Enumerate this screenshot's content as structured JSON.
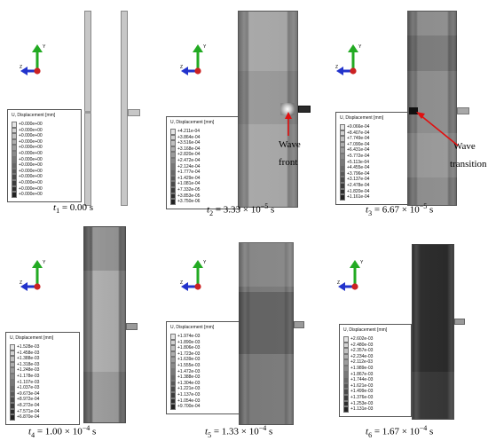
{
  "legend_title": "U, Displacement [mm]",
  "panels": [
    {
      "time_var": "t",
      "time_sub": "1",
      "time_eq": " = 0.00 s",
      "time_exp": "",
      "time_pre": "",
      "time_post": "",
      "legend_values": [
        "+0.000e+00",
        "+0.000e+00",
        "+0.000e+00",
        "+0.000e+00",
        "+0.000e+00",
        "+0.000e+00",
        "+0.000e+00",
        "+0.000e+00",
        "+0.000e+00",
        "+0.000e+00",
        "+0.000e+00",
        "+0.000e+00",
        "+0.000e+00"
      ]
    },
    {
      "time_var": "t",
      "time_sub": "2",
      "time_pre": " = 3.33 × 10",
      "time_exp": "−5",
      "time_post": " s",
      "legend_values": [
        "+4.211e-04",
        "+3.864e-04",
        "+3.516e-04",
        "+3.168e-04",
        "+2.820e-04",
        "+2.472e-04",
        "+2.124e-04",
        "+1.777e-04",
        "+1.429e-04",
        "+1.081e-04",
        "+7.332e-05",
        "+3.853e-05",
        "+3.750e-06"
      ]
    },
    {
      "time_var": "t",
      "time_sub": "3",
      "time_pre": " = 6.67 × 10",
      "time_exp": "−5",
      "time_post": " s",
      "legend_values": [
        "+9.066e-04",
        "+8.407e-04",
        "+7.749e-04",
        "+7.090e-04",
        "+6.431e-04",
        "+5.772e-04",
        "+5.113e-04",
        "+4.455e-04",
        "+3.796e-04",
        "+3.137e-04",
        "+2.478e-04",
        "+1.820e-04",
        "+1.161e-04"
      ]
    },
    {
      "time_var": "t",
      "time_sub": "4",
      "time_pre": " = 1.00 × 10",
      "time_exp": "−4",
      "time_post": " s",
      "legend_values": [
        "+1.528e-03",
        "+1.458e-03",
        "+1.388e-03",
        "+1.318e-03",
        "+1.248e-03",
        "+1.178e-03",
        "+1.107e-03",
        "+1.037e-03",
        "+9.673e-04",
        "+8.972e-04",
        "+8.272e-04",
        "+7.571e-04",
        "+6.870e-04"
      ]
    },
    {
      "time_var": "t",
      "time_sub": "5",
      "time_pre": " = 1.33 × 10",
      "time_exp": "−4",
      "time_post": " s",
      "legend_values": [
        "+1.974e-03",
        "+1.890e-03",
        "+1.806e-03",
        "+1.723e-03",
        "+1.639e-03",
        "+1.555e-03",
        "+1.472e-03",
        "+1.388e-03",
        "+1.304e-03",
        "+1.221e-03",
        "+1.137e-03",
        "+1.054e-03",
        "+9.700e-04"
      ]
    },
    {
      "time_var": "t",
      "time_sub": "6",
      "time_pre": " = 1.67 × 10",
      "time_exp": "−4",
      "time_post": " s",
      "legend_values": [
        "+2.602e-03",
        "+2.480e-03",
        "+2.357e-03",
        "+2.234e-03",
        "+2.112e-03",
        "+1.989e-03",
        "+1.867e-03",
        "+1.744e-03",
        "+1.621e-03",
        "+1.499e-03",
        "+1.376e-03",
        "+1.253e-03",
        "+1.131e-03"
      ]
    }
  ],
  "axis_labels": {
    "y": "Y",
    "z": "Z"
  },
  "annotations": {
    "wave_front_1": "Wave",
    "wave_front_2": "front",
    "wave_transition_1": "Wave",
    "wave_transition_2": "transition"
  },
  "colors": {
    "axis_y": "#22aa22",
    "axis_z": "#2233cc",
    "origin": "#cc2222",
    "arrow": "#e01010"
  },
  "legend_swatch_colors": [
    "#e4e4e4",
    "#d2d2d2",
    "#c0c0c0",
    "#aeaeae",
    "#9c9c9c",
    "#8a8a8a",
    "#787878",
    "#686868",
    "#585858",
    "#4a4a4a",
    "#3c3c3c",
    "#2e2e2e",
    "#222222"
  ]
}
